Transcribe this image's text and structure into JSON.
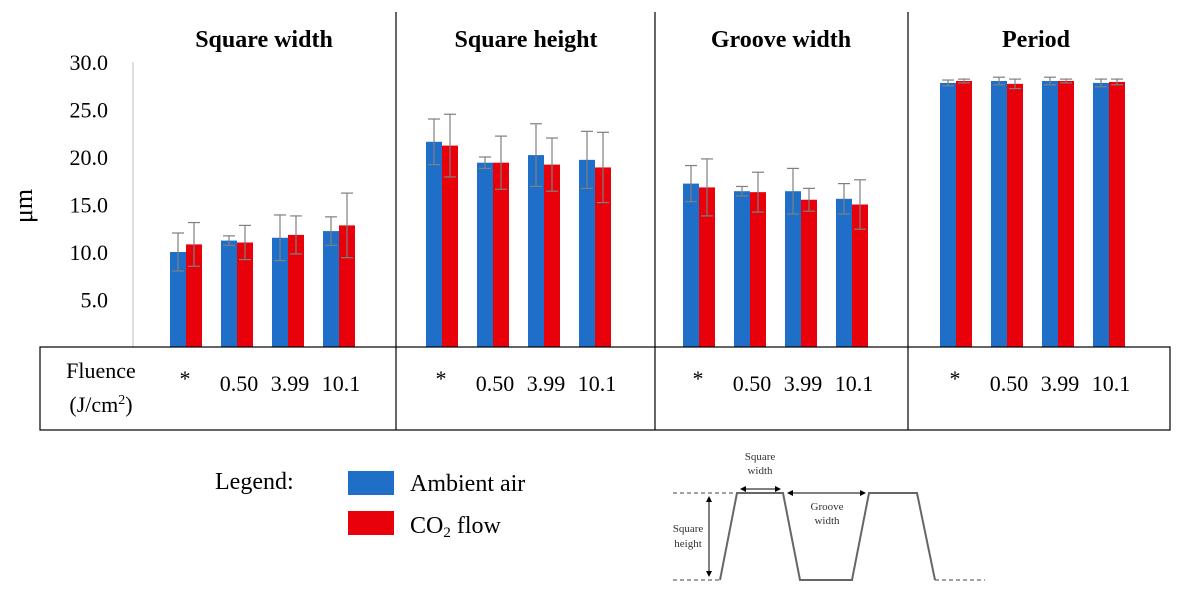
{
  "chart_data": {
    "type": "bar",
    "ylabel": "μm",
    "ylim": [
      0,
      30
    ],
    "yticks": [
      "5.0",
      "10.0",
      "15.0",
      "20.0",
      "25.0",
      "30.0"
    ],
    "ytick_values": [
      5,
      10,
      15,
      20,
      25,
      30
    ],
    "row_label_line1": "Fluence",
    "row_label_line2_main": "(J/cm",
    "row_label_line2_sup": "2",
    "row_label_line2_end": ")",
    "categories": [
      "*",
      "0.50",
      "3.99",
      "10.1"
    ],
    "colors": {
      "ambient": "#1F6FC8",
      "co2": "#E8000B",
      "error": "#7f7f7f"
    },
    "panels": [
      {
        "title": "Square width",
        "series": [
          {
            "name": "Ambient air",
            "values": [
              10.0,
              11.2,
              11.5,
              12.2
            ],
            "errors": [
              2.0,
              0.5,
              2.4,
              1.5
            ]
          },
          {
            "name": "CO2 flow",
            "values": [
              10.8,
              11.0,
              11.8,
              12.8
            ],
            "errors": [
              2.3,
              1.8,
              2.0,
              3.4
            ]
          }
        ]
      },
      {
        "title": "Square height",
        "series": [
          {
            "name": "Ambient air",
            "values": [
              21.6,
              19.4,
              20.2,
              19.7
            ],
            "errors": [
              2.4,
              0.6,
              3.3,
              3.0
            ]
          },
          {
            "name": "CO2 flow",
            "values": [
              21.2,
              19.4,
              19.2,
              18.9
            ],
            "errors": [
              3.3,
              2.8,
              2.8,
              3.7
            ]
          }
        ]
      },
      {
        "title": "Groove width",
        "series": [
          {
            "name": "Ambient air",
            "values": [
              17.2,
              16.4,
              16.4,
              15.6
            ],
            "errors": [
              1.9,
              0.5,
              2.4,
              1.6
            ]
          },
          {
            "name": "CO2 flow",
            "values": [
              16.8,
              16.3,
              15.5,
              15.0
            ],
            "errors": [
              3.0,
              2.1,
              1.2,
              2.6
            ]
          }
        ]
      },
      {
        "title": "Period",
        "series": [
          {
            "name": "Ambient air",
            "values": [
              27.8,
              28.0,
              28.0,
              27.8
            ],
            "errors": [
              0.3,
              0.4,
              0.4,
              0.4
            ]
          },
          {
            "name": "CO2 flow",
            "values": [
              28.0,
              27.7,
              28.0,
              27.9
            ],
            "errors": [
              0.2,
              0.5,
              0.2,
              0.3
            ]
          }
        ]
      }
    ],
    "legend": {
      "title": "Legend:",
      "ambient_label": "Ambient air",
      "co2_main": "CO",
      "co2_sub": "2",
      "co2_end": " flow"
    }
  },
  "diagram": {
    "square_width_line1": "Square",
    "square_width_line2": "width",
    "groove_width_line1": "Groove",
    "groove_width_line2": "width",
    "square_height_line1": "Square",
    "square_height_line2": "height"
  }
}
